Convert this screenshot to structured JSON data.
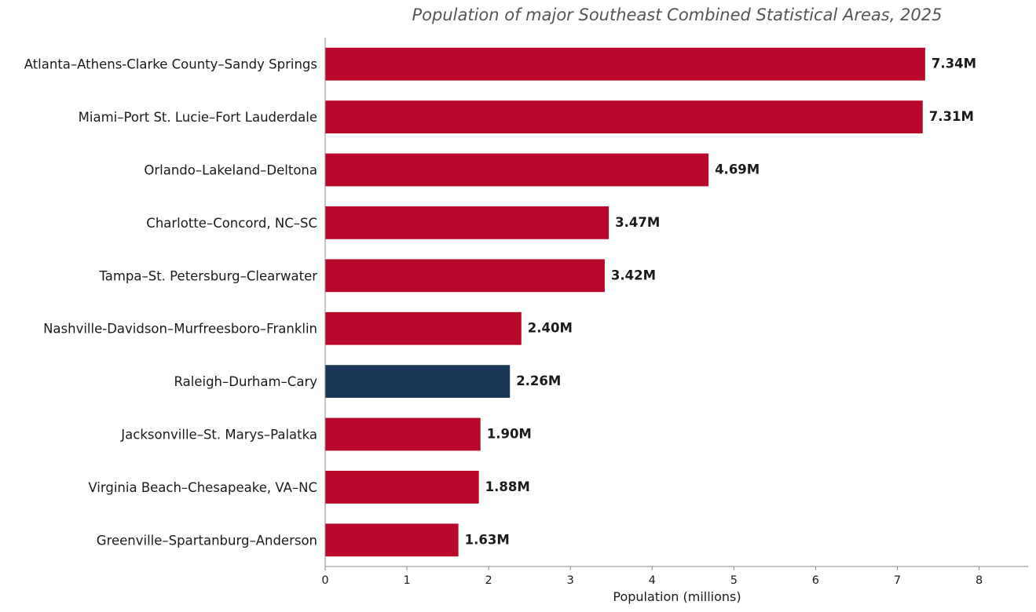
{
  "chart_data": {
    "type": "bar",
    "orientation": "horizontal",
    "title": "Population of major Southeast Combined Statistical Areas, 2025",
    "xlabel": "Population (millions)",
    "ylabel": "",
    "xlim": [
      0,
      8.6
    ],
    "xticks": [
      0,
      1,
      2,
      3,
      4,
      5,
      6,
      7,
      8
    ],
    "grid": false,
    "legend": "none",
    "colors": {
      "default": "#B90829",
      "highlight": "#183757"
    },
    "categories": [
      "Atlanta–Athens-Clarke County–Sandy Springs",
      "Miami–Port St. Lucie–Fort Lauderdale",
      "Orlando–Lakeland–Deltona",
      "Charlotte–Concord, NC–SC",
      "Tampa–St. Petersburg–Clearwater",
      "Nashville-Davidson–Murfreesboro–Franklin",
      "Raleigh–Durham–Cary",
      "Jacksonville–St. Marys–Palatka",
      "Virginia Beach–Chesapeake, VA–NC",
      "Greenville–Spartanburg–Anderson"
    ],
    "values": [
      7.34,
      7.31,
      4.69,
      3.47,
      3.42,
      2.4,
      2.26,
      1.9,
      1.88,
      1.63
    ],
    "value_labels": [
      "7.34M",
      "7.31M",
      "4.69M",
      "3.47M",
      "3.42M",
      "2.40M",
      "2.26M",
      "1.90M",
      "1.88M",
      "1.63M"
    ],
    "highlighted": [
      "Raleigh–Durham–Cary"
    ]
  }
}
